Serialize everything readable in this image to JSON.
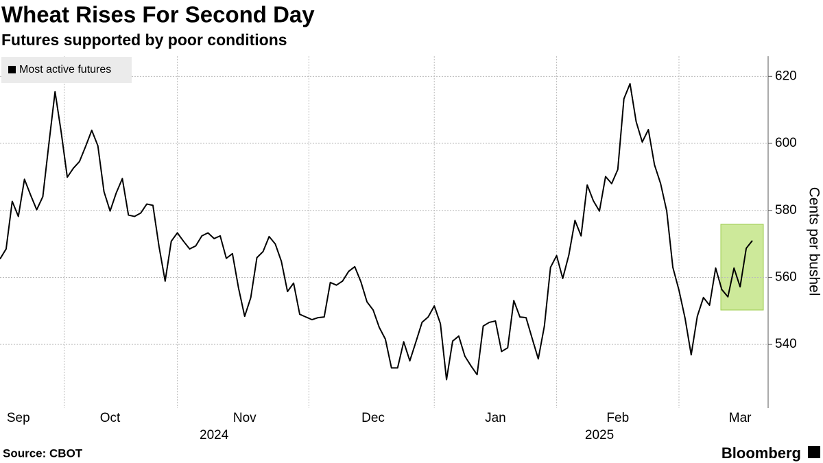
{
  "chart_data": {
    "type": "line",
    "title": "Wheat Rises For Second Day",
    "subtitle": "Futures supported by poor conditions",
    "source": "Source: CBOT",
    "brand": "Bloomberg",
    "y_axis_label": "Cents per bushel",
    "categories": [
      null,
      null,
      null,
      "Sep",
      null,
      null,
      null,
      null,
      null,
      null,
      null,
      null,
      null,
      null,
      null,
      null,
      null,
      null,
      "Oct",
      null,
      null,
      null,
      null,
      null,
      null,
      null,
      null,
      null,
      null,
      null,
      null,
      null,
      null,
      null,
      null,
      null,
      null,
      null,
      null,
      null,
      "Nov",
      null,
      null,
      null,
      null,
      null,
      null,
      null,
      null,
      null,
      null,
      null,
      null,
      null,
      null,
      null,
      null,
      null,
      null,
      null,
      null,
      "Dec",
      null,
      null,
      null,
      null,
      null,
      null,
      null,
      null,
      null,
      null,
      null,
      null,
      null,
      null,
      null,
      null,
      null,
      null,
      null,
      "Jan",
      null,
      null,
      null,
      null,
      null,
      null,
      null,
      null,
      null,
      null,
      null,
      null,
      null,
      null,
      null,
      null,
      null,
      null,
      null,
      "Feb",
      null,
      null,
      null,
      null,
      null,
      null,
      null,
      null,
      null,
      null,
      null,
      null,
      null,
      null,
      null,
      null,
      null,
      null,
      null,
      "Mar",
      null,
      null
    ],
    "x_years": [
      null,
      null,
      null,
      null,
      null,
      null,
      null,
      null,
      null,
      null,
      null,
      null,
      null,
      null,
      null,
      null,
      null,
      null,
      null,
      null,
      null,
      null,
      null,
      null,
      null,
      null,
      null,
      null,
      null,
      null,
      null,
      null,
      null,
      null,
      null,
      "2024",
      null,
      null,
      null,
      null,
      null,
      null,
      null,
      null,
      null,
      null,
      null,
      null,
      null,
      null,
      null,
      null,
      null,
      null,
      null,
      null,
      null,
      null,
      null,
      null,
      null,
      null,
      null,
      null,
      null,
      null,
      null,
      null,
      null,
      null,
      null,
      null,
      null,
      null,
      null,
      null,
      null,
      null,
      null,
      null,
      null,
      null,
      null,
      null,
      null,
      null,
      null,
      null,
      null,
      null,
      null,
      null,
      null,
      null,
      null,
      null,
      null,
      null,
      "2025",
      null,
      null,
      null,
      null,
      null,
      null,
      null,
      null,
      null,
      null,
      null,
      null,
      null,
      null,
      null,
      null,
      null,
      null,
      null,
      null,
      null,
      null,
      null,
      null,
      null
    ],
    "series": [
      {
        "name": "Most active futures",
        "color": "#000000",
        "values": [
          565.5,
          568.5,
          582.7,
          578.2,
          589.3,
          584.6,
          580.2,
          584.1,
          600.0,
          615.4,
          603.4,
          589.9,
          592.6,
          594.6,
          599.1,
          603.9,
          599.3,
          585.6,
          579.8,
          585.2,
          589.5,
          578.6,
          578.2,
          579.2,
          581.9,
          581.5,
          569.2,
          558.9,
          570.8,
          573.3,
          570.8,
          568.5,
          569.4,
          572.4,
          573.3,
          571.6,
          572.4,
          565.7,
          567.1,
          556.8,
          548.4,
          554.0,
          565.9,
          567.7,
          572.2,
          570.0,
          564.8,
          555.8,
          558.3,
          549.0,
          548.2,
          547.4,
          548.0,
          548.2,
          558.5,
          557.7,
          558.9,
          561.8,
          563.2,
          558.7,
          552.7,
          550.3,
          545.1,
          541.6,
          533.0,
          533.0,
          540.8,
          535.1,
          540.8,
          546.6,
          548.2,
          551.5,
          546.2,
          529.5,
          541.0,
          542.5,
          536.5,
          533.6,
          531.0,
          545.5,
          546.6,
          547.0,
          537.9,
          539.0,
          553.1,
          548.2,
          548.0,
          541.8,
          535.7,
          545.5,
          563.0,
          566.5,
          559.7,
          566.7,
          577.0,
          572.4,
          587.6,
          582.9,
          579.8,
          590.1,
          588.0,
          592.2,
          613.3,
          617.8,
          606.5,
          600.4,
          604.1,
          593.6,
          588.0,
          579.8,
          563.0,
          556.2,
          547.8,
          536.9,
          548.4,
          554.0,
          551.7,
          562.8,
          556.4,
          554.2,
          562.8,
          557.2,
          568.7,
          571.0
        ]
      }
    ],
    "ylim": [
      521,
      626
    ],
    "yticks": [
      540,
      560,
      580,
      600,
      620
    ],
    "grid": true,
    "legend": "upper left"
  }
}
